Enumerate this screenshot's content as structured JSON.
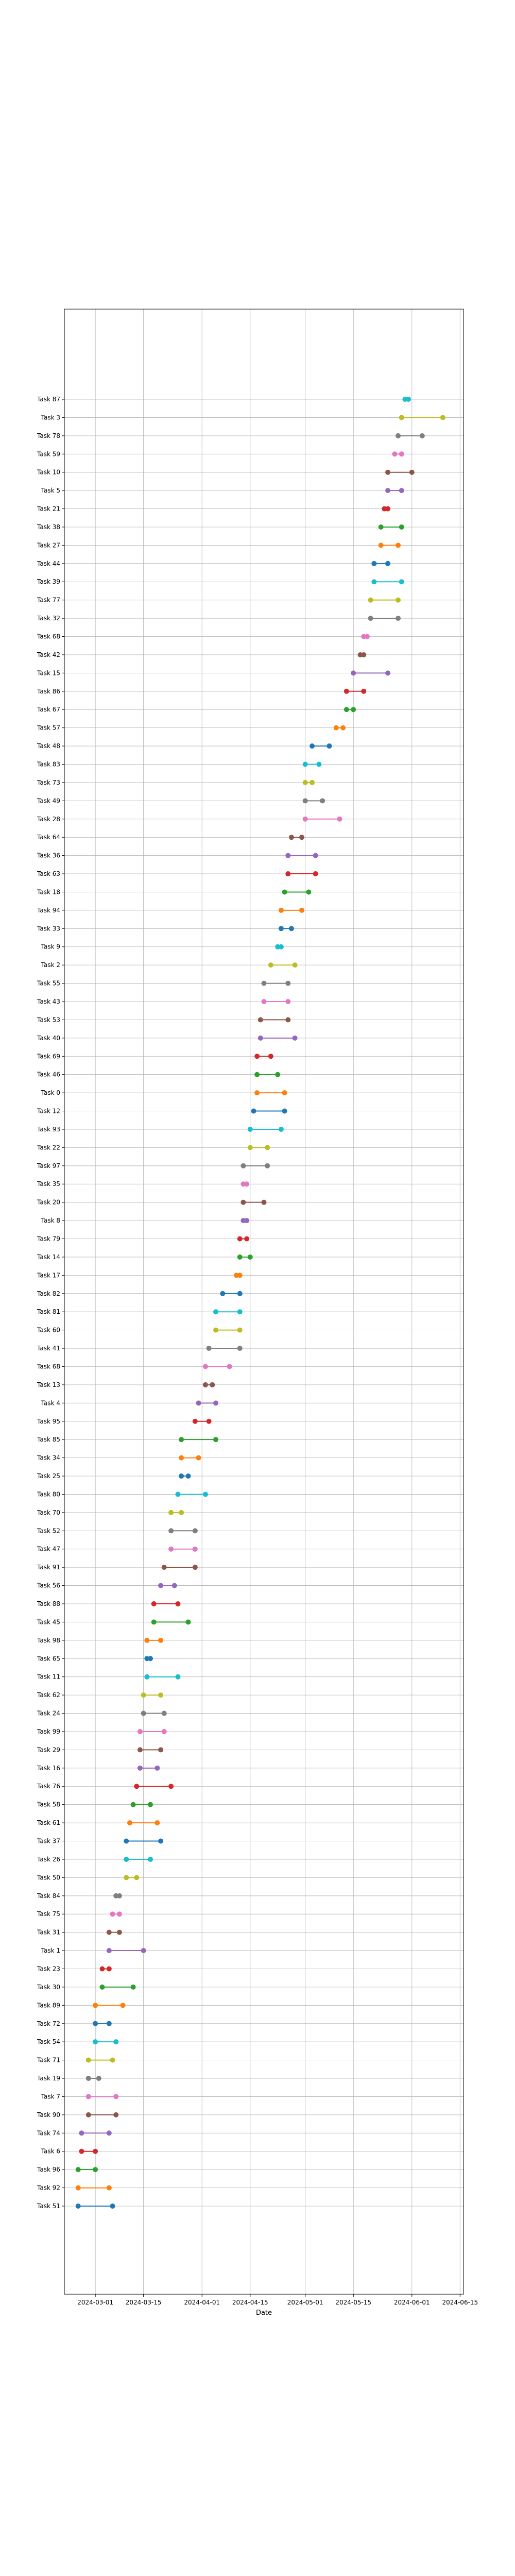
{
  "chart_data": {
    "type": "line",
    "title": "",
    "xlabel": "Date",
    "ylabel": "",
    "grid": true,
    "legend": "none",
    "xlim": [
      "2024-02-21",
      "2024-06-16"
    ],
    "x_ticks": [
      "2024-03-01",
      "2024-03-15",
      "2024-04-01",
      "2024-04-15",
      "2024-05-01",
      "2024-05-15",
      "2024-06-01",
      "2024-06-15"
    ],
    "palette": [
      "#1f77b4",
      "#ff7f0e",
      "#2ca02c",
      "#d62728",
      "#9467bd",
      "#8c564b",
      "#e377c2",
      "#7f7f7f",
      "#bcbd22",
      "#17becf"
    ],
    "tasks": [
      {
        "name": "Task 51",
        "start": "2024-02-25",
        "end": "2024-03-06"
      },
      {
        "name": "Task 92",
        "start": "2024-02-25",
        "end": "2024-03-05"
      },
      {
        "name": "Task 96",
        "start": "2024-02-25",
        "end": "2024-03-01"
      },
      {
        "name": "Task 6",
        "start": "2024-02-26",
        "end": "2024-03-01"
      },
      {
        "name": "Task 74",
        "start": "2024-02-26",
        "end": "2024-03-05"
      },
      {
        "name": "Task 90",
        "start": "2024-02-28",
        "end": "2024-03-07"
      },
      {
        "name": "Task 7",
        "start": "2024-02-28",
        "end": "2024-03-07"
      },
      {
        "name": "Task 19",
        "start": "2024-02-28",
        "end": "2024-03-02"
      },
      {
        "name": "Task 71",
        "start": "2024-02-28",
        "end": "2024-03-06"
      },
      {
        "name": "Task 54",
        "start": "2024-03-01",
        "end": "2024-03-07"
      },
      {
        "name": "Task 72",
        "start": "2024-03-01",
        "end": "2024-03-05"
      },
      {
        "name": "Task 89",
        "start": "2024-03-01",
        "end": "2024-03-09"
      },
      {
        "name": "Task 30",
        "start": "2024-03-03",
        "end": "2024-03-12"
      },
      {
        "name": "Task 23",
        "start": "2024-03-03",
        "end": "2024-03-05"
      },
      {
        "name": "Task 1",
        "start": "2024-03-05",
        "end": "2024-03-15"
      },
      {
        "name": "Task 31",
        "start": "2024-03-05",
        "end": "2024-03-08"
      },
      {
        "name": "Task 75",
        "start": "2024-03-06",
        "end": "2024-03-08"
      },
      {
        "name": "Task 84",
        "start": "2024-03-07",
        "end": "2024-03-08"
      },
      {
        "name": "Task 50",
        "start": "2024-03-10",
        "end": "2024-03-13"
      },
      {
        "name": "Task 26",
        "start": "2024-03-10",
        "end": "2024-03-17"
      },
      {
        "name": "Task 37",
        "start": "2024-03-10",
        "end": "2024-03-20"
      },
      {
        "name": "Task 61",
        "start": "2024-03-11",
        "end": "2024-03-19"
      },
      {
        "name": "Task 58",
        "start": "2024-03-12",
        "end": "2024-03-17"
      },
      {
        "name": "Task 76",
        "start": "2024-03-13",
        "end": "2024-03-23"
      },
      {
        "name": "Task 16",
        "start": "2024-03-14",
        "end": "2024-03-19"
      },
      {
        "name": "Task 29",
        "start": "2024-03-14",
        "end": "2024-03-20"
      },
      {
        "name": "Task 99",
        "start": "2024-03-14",
        "end": "2024-03-21"
      },
      {
        "name": "Task 24",
        "start": "2024-03-15",
        "end": "2024-03-21"
      },
      {
        "name": "Task 62",
        "start": "2024-03-15",
        "end": "2024-03-20"
      },
      {
        "name": "Task 11",
        "start": "2024-03-16",
        "end": "2024-03-25"
      },
      {
        "name": "Task 65",
        "start": "2024-03-16",
        "end": "2024-03-17"
      },
      {
        "name": "Task 98",
        "start": "2024-03-16",
        "end": "2024-03-20"
      },
      {
        "name": "Task 45",
        "start": "2024-03-18",
        "end": "2024-03-28"
      },
      {
        "name": "Task 88",
        "start": "2024-03-18",
        "end": "2024-03-25"
      },
      {
        "name": "Task 56",
        "start": "2024-03-20",
        "end": "2024-03-24"
      },
      {
        "name": "Task 91",
        "start": "2024-03-21",
        "end": "2024-03-30"
      },
      {
        "name": "Task 47",
        "start": "2024-03-23",
        "end": "2024-03-30"
      },
      {
        "name": "Task 52",
        "start": "2024-03-23",
        "end": "2024-03-30"
      },
      {
        "name": "Task 70",
        "start": "2024-03-23",
        "end": "2024-03-26"
      },
      {
        "name": "Task 80",
        "start": "2024-03-25",
        "end": "2024-04-02"
      },
      {
        "name": "Task 25",
        "start": "2024-03-26",
        "end": "2024-03-28"
      },
      {
        "name": "Task 34",
        "start": "2024-03-26",
        "end": "2024-03-31"
      },
      {
        "name": "Task 85",
        "start": "2024-03-26",
        "end": "2024-04-05"
      },
      {
        "name": "Task 95",
        "start": "2024-03-30",
        "end": "2024-04-03"
      },
      {
        "name": "Task 4",
        "start": "2024-03-31",
        "end": "2024-04-05"
      },
      {
        "name": "Task 13",
        "start": "2024-04-02",
        "end": "2024-04-04"
      },
      {
        "name": "Task 68",
        "start": "2024-04-02",
        "end": "2024-04-09"
      },
      {
        "name": "Task 41",
        "start": "2024-04-03",
        "end": "2024-04-12"
      },
      {
        "name": "Task 60",
        "start": "2024-04-05",
        "end": "2024-04-12"
      },
      {
        "name": "Task 81",
        "start": "2024-04-05",
        "end": "2024-04-12"
      },
      {
        "name": "Task 82",
        "start": "2024-04-07",
        "end": "2024-04-12"
      },
      {
        "name": "Task 17",
        "start": "2024-04-11",
        "end": "2024-04-12"
      },
      {
        "name": "Task 14",
        "start": "2024-04-12",
        "end": "2024-04-15"
      },
      {
        "name": "Task 79",
        "start": "2024-04-12",
        "end": "2024-04-14"
      },
      {
        "name": "Task 8",
        "start": "2024-04-13",
        "end": "2024-04-14"
      },
      {
        "name": "Task 20",
        "start": "2024-04-13",
        "end": "2024-04-19"
      },
      {
        "name": "Task 35",
        "start": "2024-04-13",
        "end": "2024-04-14"
      },
      {
        "name": "Task 97",
        "start": "2024-04-13",
        "end": "2024-04-20"
      },
      {
        "name": "Task 22",
        "start": "2024-04-15",
        "end": "2024-04-20"
      },
      {
        "name": "Task 93",
        "start": "2024-04-15",
        "end": "2024-04-24"
      },
      {
        "name": "Task 12",
        "start": "2024-04-16",
        "end": "2024-04-25"
      },
      {
        "name": "Task 0",
        "start": "2024-04-17",
        "end": "2024-04-25"
      },
      {
        "name": "Task 46",
        "start": "2024-04-17",
        "end": "2024-04-23"
      },
      {
        "name": "Task 69",
        "start": "2024-04-17",
        "end": "2024-04-21"
      },
      {
        "name": "Task 40",
        "start": "2024-04-18",
        "end": "2024-04-28"
      },
      {
        "name": "Task 53",
        "start": "2024-04-18",
        "end": "2024-04-26"
      },
      {
        "name": "Task 43",
        "start": "2024-04-19",
        "end": "2024-04-26"
      },
      {
        "name": "Task 55",
        "start": "2024-04-19",
        "end": "2024-04-26"
      },
      {
        "name": "Task 2",
        "start": "2024-04-21",
        "end": "2024-04-28"
      },
      {
        "name": "Task 9",
        "start": "2024-04-23",
        "end": "2024-04-24"
      },
      {
        "name": "Task 33",
        "start": "2024-04-24",
        "end": "2024-04-27"
      },
      {
        "name": "Task 94",
        "start": "2024-04-24",
        "end": "2024-04-30"
      },
      {
        "name": "Task 18",
        "start": "2024-04-25",
        "end": "2024-05-02"
      },
      {
        "name": "Task 63",
        "start": "2024-04-26",
        "end": "2024-05-04"
      },
      {
        "name": "Task 36",
        "start": "2024-04-26",
        "end": "2024-05-04"
      },
      {
        "name": "Task 64",
        "start": "2024-04-27",
        "end": "2024-04-30"
      },
      {
        "name": "Task 28",
        "start": "2024-05-01",
        "end": "2024-05-11"
      },
      {
        "name": "Task 49",
        "start": "2024-05-01",
        "end": "2024-05-06"
      },
      {
        "name": "Task 73",
        "start": "2024-05-01",
        "end": "2024-05-03"
      },
      {
        "name": "Task 83",
        "start": "2024-05-01",
        "end": "2024-05-05"
      },
      {
        "name": "Task 48",
        "start": "2024-05-03",
        "end": "2024-05-08"
      },
      {
        "name": "Task 57",
        "start": "2024-05-10",
        "end": "2024-05-12"
      },
      {
        "name": "Task 67",
        "start": "2024-05-13",
        "end": "2024-05-15"
      },
      {
        "name": "Task 86",
        "start": "2024-05-13",
        "end": "2024-05-18"
      },
      {
        "name": "Task 15",
        "start": "2024-05-15",
        "end": "2024-05-25"
      },
      {
        "name": "Task 42",
        "start": "2024-05-17",
        "end": "2024-05-18"
      },
      {
        "name": "Task 68",
        "start": "2024-05-18",
        "end": "2024-05-19"
      },
      {
        "name": "Task 32",
        "start": "2024-05-20",
        "end": "2024-05-28"
      },
      {
        "name": "Task 77",
        "start": "2024-05-20",
        "end": "2024-05-28"
      },
      {
        "name": "Task 39",
        "start": "2024-05-21",
        "end": "2024-05-29"
      },
      {
        "name": "Task 44",
        "start": "2024-05-21",
        "end": "2024-05-25"
      },
      {
        "name": "Task 27",
        "start": "2024-05-23",
        "end": "2024-05-28"
      },
      {
        "name": "Task 38",
        "start": "2024-05-23",
        "end": "2024-05-29"
      },
      {
        "name": "Task 21",
        "start": "2024-05-24",
        "end": "2024-05-25"
      },
      {
        "name": "Task 5",
        "start": "2024-05-25",
        "end": "2024-05-29"
      },
      {
        "name": "Task 10",
        "start": "2024-05-25",
        "end": "2024-06-01"
      },
      {
        "name": "Task 59",
        "start": "2024-05-27",
        "end": "2024-05-29"
      },
      {
        "name": "Task 78",
        "start": "2024-05-28",
        "end": "2024-06-04"
      },
      {
        "name": "Task 3",
        "start": "2024-05-29",
        "end": "2024-06-10"
      },
      {
        "name": "Task 87",
        "start": "2024-05-30",
        "end": "2024-05-31"
      }
    ]
  }
}
